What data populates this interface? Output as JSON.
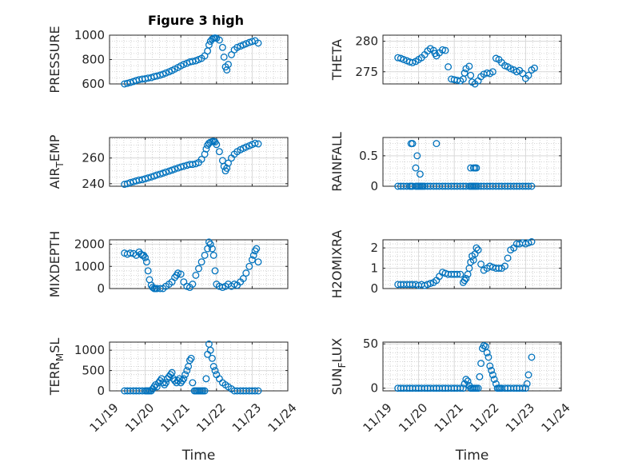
{
  "figure_title": "Figure 3 high",
  "colors": {
    "marker": "#0072BD",
    "axes": "#262626",
    "grid": "#d9d9d9",
    "background": "#ffffff"
  },
  "chart_data": [
    {
      "type": "scatter",
      "ylabel": "PRESSURE",
      "title": "Figure 3 high",
      "xlim": [
        19,
        24
      ],
      "ylim": [
        600,
        1000
      ],
      "yticks": [
        600,
        800,
        1000
      ],
      "ytick_labels": [
        "600",
        "800",
        "1000"
      ],
      "xtick_labels": [],
      "xlabel": "",
      "grid": "on",
      "x": [
        19.42,
        19.5,
        19.58,
        19.67,
        19.75,
        19.83,
        19.92,
        20.0,
        20.08,
        20.17,
        20.25,
        20.33,
        20.42,
        20.5,
        20.58,
        20.67,
        20.75,
        20.83,
        20.92,
        21.0,
        21.08,
        21.17,
        21.25,
        21.33,
        21.42,
        21.5,
        21.58,
        21.67,
        21.75,
        21.79,
        21.83,
        21.88,
        21.92,
        21.96,
        22.0,
        22.08,
        22.17,
        22.21,
        22.25,
        22.29,
        22.33,
        22.42,
        22.5,
        22.58,
        22.67,
        22.75,
        22.83,
        22.92,
        23.0,
        23.08,
        23.17
      ],
      "y": [
        600,
        605,
        612,
        620,
        628,
        635,
        640,
        642,
        648,
        652,
        660,
        665,
        672,
        680,
        690,
        700,
        710,
        722,
        735,
        748,
        760,
        770,
        780,
        785,
        790,
        800,
        810,
        830,
        870,
        920,
        950,
        968,
        975,
        978,
        975,
        960,
        900,
        820,
        740,
        715,
        760,
        840,
        880,
        900,
        910,
        920,
        930,
        940,
        948,
        955,
        935
      ]
    },
    {
      "type": "scatter",
      "ylabel": "THETA",
      "xlim": [
        19,
        24
      ],
      "ylim": [
        273,
        281
      ],
      "yticks": [
        275,
        280
      ],
      "ytick_labels": [
        "275",
        "280"
      ],
      "xtick_labels": [],
      "xlabel": "",
      "grid": "on",
      "x": [
        19.42,
        19.5,
        19.58,
        19.67,
        19.75,
        19.83,
        19.92,
        20.0,
        20.08,
        20.17,
        20.25,
        20.33,
        20.42,
        20.46,
        20.5,
        20.58,
        20.67,
        20.75,
        20.83,
        20.92,
        21.0,
        21.08,
        21.17,
        21.25,
        21.29,
        21.33,
        21.42,
        21.46,
        21.5,
        21.58,
        21.67,
        21.75,
        21.83,
        21.92,
        22.0,
        22.08,
        22.17,
        22.25,
        22.33,
        22.42,
        22.5,
        22.58,
        22.67,
        22.75,
        22.83,
        22.92,
        23.0,
        23.08,
        23.17,
        23.25
      ],
      "y": [
        277.3,
        277.2,
        277.0,
        276.8,
        276.6,
        276.5,
        276.7,
        277.0,
        277.3,
        277.8,
        278.4,
        278.8,
        278.5,
        278.0,
        277.6,
        278.1,
        278.6,
        278.5,
        275.8,
        273.8,
        273.7,
        273.6,
        273.5,
        273.8,
        274.8,
        275.5,
        275.9,
        274.4,
        273.3,
        273.0,
        273.5,
        274.2,
        274.6,
        274.8,
        274.7,
        275.0,
        277.2,
        277.0,
        276.5,
        276.0,
        275.8,
        275.5,
        275.3,
        275.0,
        275.2,
        274.7,
        273.9,
        274.4,
        275.3,
        275.6
      ]
    },
    {
      "type": "scatter",
      "ylabel": "AIR_TEMP",
      "xlim": [
        19,
        24
      ],
      "ylim": [
        238,
        276
      ],
      "yticks": [
        240,
        260
      ],
      "ytick_labels": [
        "240",
        "260"
      ],
      "xtick_labels": [],
      "xlabel": "",
      "grid": "on",
      "x": [
        19.42,
        19.5,
        19.58,
        19.67,
        19.75,
        19.83,
        19.92,
        20.0,
        20.08,
        20.17,
        20.25,
        20.33,
        20.42,
        20.5,
        20.58,
        20.67,
        20.75,
        20.83,
        20.92,
        21.0,
        21.08,
        21.17,
        21.25,
        21.33,
        21.42,
        21.5,
        21.58,
        21.67,
        21.71,
        21.75,
        21.79,
        21.83,
        21.88,
        21.92,
        21.96,
        22.0,
        22.08,
        22.17,
        22.21,
        22.25,
        22.29,
        22.33,
        22.42,
        22.5,
        22.58,
        22.67,
        22.75,
        22.83,
        22.92,
        23.0,
        23.08,
        23.17
      ],
      "y": [
        239.5,
        240.0,
        240.8,
        241.5,
        242.2,
        242.8,
        243.2,
        243.8,
        244.5,
        245.2,
        246.0,
        246.8,
        247.5,
        248.2,
        249.0,
        249.8,
        250.6,
        251.4,
        252.2,
        253.0,
        253.6,
        254.3,
        255.0,
        255.0,
        255.5,
        256.5,
        259.0,
        263.0,
        267.0,
        270.0,
        271.5,
        272.3,
        272.8,
        273.0,
        272.5,
        270.5,
        265.0,
        258.0,
        253.5,
        250.0,
        252.0,
        256.0,
        260.0,
        263.0,
        265.0,
        266.5,
        267.5,
        268.5,
        269.5,
        270.5,
        271.5,
        271.0
      ]
    },
    {
      "type": "scatter",
      "ylabel": "RAINFALL",
      "xlim": [
        19,
        24
      ],
      "ylim": [
        0,
        0.8
      ],
      "yticks": [
        0,
        0.5
      ],
      "ytick_labels": [
        "0",
        "0.5"
      ],
      "xtick_labels": [],
      "xlabel": "",
      "grid": "on",
      "x": [
        19.42,
        19.5,
        19.58,
        19.67,
        19.75,
        19.79,
        19.83,
        19.92,
        19.96,
        20.0,
        20.04,
        20.08,
        20.12,
        20.17,
        20.25,
        20.33,
        20.42,
        20.5,
        20.58,
        20.67,
        20.75,
        20.83,
        20.92,
        21.0,
        21.08,
        21.17,
        21.25,
        21.33,
        21.42,
        21.46,
        21.5,
        21.54,
        21.58,
        21.62,
        21.67,
        21.75,
        21.83,
        21.92,
        22.0,
        22.08,
        22.17,
        22.25,
        22.33,
        22.42,
        22.5,
        22.58,
        22.67,
        22.75,
        22.83,
        22.92,
        23.0,
        23.08,
        23.17,
        19.79,
        19.83,
        19.92,
        19.96,
        20.04,
        20.5,
        21.46,
        21.54,
        21.58,
        21.62
      ],
      "y": [
        0,
        0,
        0,
        0,
        0,
        0,
        0,
        0,
        0,
        0,
        0,
        0,
        0,
        0,
        0,
        0,
        0,
        0,
        0,
        0,
        0,
        0,
        0,
        0,
        0,
        0,
        0,
        0,
        0,
        0,
        0,
        0,
        0,
        0,
        0,
        0,
        0,
        0,
        0,
        0,
        0,
        0,
        0,
        0,
        0,
        0,
        0,
        0,
        0,
        0,
        0,
        0,
        0,
        0.7,
        0.7,
        0.3,
        0.5,
        0.2,
        0.7,
        0.3,
        0.3,
        0.3,
        0.3
      ]
    },
    {
      "type": "scatter",
      "ylabel": "MIXDEPTH",
      "xlim": [
        19,
        24
      ],
      "ylim": [
        0,
        2200
      ],
      "yticks": [
        0,
        1000,
        2000
      ],
      "ytick_labels": [
        "0",
        "1000",
        "2000"
      ],
      "xtick_labels": [],
      "xlabel": "",
      "grid": "on",
      "x": [
        19.42,
        19.5,
        19.58,
        19.67,
        19.75,
        19.83,
        19.88,
        19.92,
        19.96,
        20.0,
        20.04,
        20.08,
        20.12,
        20.17,
        20.21,
        20.25,
        20.29,
        20.33,
        20.42,
        20.5,
        20.58,
        20.67,
        20.75,
        20.83,
        20.88,
        20.92,
        21.0,
        21.08,
        21.17,
        21.25,
        21.33,
        21.42,
        21.5,
        21.58,
        21.67,
        21.75,
        21.79,
        21.83,
        21.88,
        21.92,
        21.96,
        22.0,
        22.08,
        22.17,
        22.25,
        22.33,
        22.42,
        22.5,
        22.58,
        22.67,
        22.75,
        22.83,
        22.92,
        23.0,
        23.04,
        23.08,
        23.12,
        23.17
      ],
      "y": [
        1600,
        1550,
        1600,
        1580,
        1500,
        1650,
        1550,
        1500,
        1500,
        1400,
        1200,
        800,
        400,
        150,
        50,
        0,
        0,
        0,
        0,
        0,
        100,
        200,
        300,
        500,
        600,
        700,
        650,
        300,
        100,
        50,
        200,
        600,
        900,
        1200,
        1500,
        1800,
        2100,
        2000,
        1800,
        1500,
        800,
        200,
        100,
        50,
        100,
        200,
        100,
        200,
        150,
        300,
        450,
        700,
        1000,
        1300,
        1500,
        1700,
        1800,
        1200
      ]
    },
    {
      "type": "scatter",
      "ylabel": "H2OMIXRA",
      "xlim": [
        19,
        24
      ],
      "ylim": [
        0,
        2.4
      ],
      "yticks": [
        0,
        1,
        2
      ],
      "ytick_labels": [
        "0",
        "1",
        "2"
      ],
      "xtick_labels": [],
      "xlabel": "",
      "grid": "on",
      "x": [
        19.42,
        19.5,
        19.58,
        19.67,
        19.75,
        19.83,
        19.92,
        20.0,
        20.08,
        20.17,
        20.25,
        20.33,
        20.42,
        20.5,
        20.58,
        20.67,
        20.75,
        20.83,
        20.92,
        21.0,
        21.08,
        21.17,
        21.25,
        21.29,
        21.33,
        21.38,
        21.42,
        21.46,
        21.5,
        21.54,
        21.58,
        21.62,
        21.67,
        21.75,
        21.83,
        21.92,
        22.0,
        22.08,
        22.17,
        22.25,
        22.33,
        22.42,
        22.5,
        22.58,
        22.67,
        22.75,
        22.83,
        22.92,
        23.0,
        23.08,
        23.17
      ],
      "y": [
        0.2,
        0.2,
        0.2,
        0.2,
        0.2,
        0.2,
        0.2,
        0.15,
        0.2,
        0.15,
        0.2,
        0.25,
        0.3,
        0.4,
        0.6,
        0.8,
        0.75,
        0.7,
        0.7,
        0.7,
        0.7,
        0.7,
        0.3,
        0.4,
        0.5,
        0.7,
        1.0,
        1.3,
        1.6,
        1.4,
        1.7,
        2.0,
        1.9,
        1.2,
        0.9,
        1.0,
        1.1,
        1.05,
        1.0,
        1.0,
        1.0,
        1.1,
        1.5,
        1.9,
        2.0,
        2.2,
        2.2,
        2.25,
        2.2,
        2.25,
        2.3
      ]
    },
    {
      "type": "scatter",
      "ylabel": "TERR_MSL",
      "xlim": [
        19,
        24
      ],
      "ylim": [
        0,
        1200
      ],
      "yticks": [
        0,
        500,
        1000
      ],
      "ytick_labels": [
        "0",
        "500",
        "1000"
      ],
      "xtick_labels": [
        "11/19",
        "11/20",
        "11/21",
        "11/22",
        "11/23",
        "11/24"
      ],
      "xlabel": "Time",
      "grid": "on",
      "x": [
        19.42,
        19.5,
        19.58,
        19.67,
        19.75,
        19.83,
        19.92,
        20.0,
        20.04,
        20.08,
        20.12,
        20.17,
        20.21,
        20.25,
        20.29,
        20.33,
        20.38,
        20.42,
        20.46,
        20.5,
        20.54,
        20.58,
        20.62,
        20.67,
        20.71,
        20.75,
        20.79,
        20.83,
        20.88,
        20.92,
        20.96,
        21.0,
        21.04,
        21.08,
        21.12,
        21.17,
        21.21,
        21.25,
        21.29,
        21.33,
        21.38,
        21.42,
        21.46,
        21.5,
        21.54,
        21.58,
        21.62,
        21.67,
        21.71,
        21.75,
        21.79,
        21.83,
        21.88,
        21.92,
        21.96,
        22.0,
        22.08,
        22.17,
        22.25,
        22.33,
        22.42,
        22.5,
        22.58,
        22.67,
        22.75,
        22.83,
        22.92,
        23.0,
        23.08,
        23.17
      ],
      "y": [
        0,
        0,
        0,
        0,
        0,
        0,
        0,
        0,
        0,
        0,
        0,
        0,
        50,
        100,
        150,
        100,
        200,
        250,
        300,
        200,
        150,
        200,
        300,
        350,
        400,
        450,
        300,
        250,
        200,
        250,
        300,
        200,
        250,
        300,
        400,
        500,
        600,
        750,
        800,
        200,
        0,
        0,
        0,
        0,
        0,
        0,
        0,
        0,
        300,
        900,
        1150,
        1000,
        800,
        600,
        500,
        400,
        300,
        200,
        150,
        100,
        50,
        0,
        0,
        0,
        0,
        0,
        0,
        0,
        0,
        0
      ]
    },
    {
      "type": "scatter",
      "ylabel": "SUN_FLUX",
      "xlim": [
        19,
        24
      ],
      "ylim": [
        -3,
        52
      ],
      "yticks": [
        0,
        50
      ],
      "ytick_labels": [
        "0",
        "50"
      ],
      "xtick_labels": [
        "11/19",
        "11/20",
        "11/21",
        "11/22",
        "11/23",
        "11/24"
      ],
      "xlabel": "Time",
      "grid": "on",
      "x": [
        19.42,
        19.5,
        19.58,
        19.67,
        19.75,
        19.83,
        19.92,
        20.0,
        20.08,
        20.17,
        20.25,
        20.33,
        20.42,
        20.5,
        20.58,
        20.67,
        20.75,
        20.83,
        20.92,
        21.0,
        21.08,
        21.17,
        21.25,
        21.29,
        21.33,
        21.38,
        21.42,
        21.46,
        21.5,
        21.54,
        21.58,
        21.62,
        21.67,
        21.71,
        21.75,
        21.79,
        21.83,
        21.88,
        21.92,
        21.96,
        22.0,
        22.04,
        22.08,
        22.12,
        22.17,
        22.21,
        22.25,
        22.29,
        22.33,
        22.42,
        22.5,
        22.58,
        22.67,
        22.75,
        22.83,
        22.92,
        23.0,
        23.04,
        23.08,
        23.17
      ],
      "y": [
        0,
        0,
        0,
        0,
        0,
        0,
        0,
        0,
        0,
        0,
        0,
        0,
        0,
        0,
        0,
        0,
        0,
        0,
        0,
        0,
        0,
        0,
        0,
        5,
        10,
        8,
        3,
        0,
        0,
        0,
        0,
        0,
        0,
        13,
        28,
        45,
        48,
        47,
        40,
        35,
        25,
        20,
        15,
        10,
        5,
        0,
        0,
        0,
        0,
        0,
        0,
        0,
        0,
        0,
        0,
        0,
        0,
        5,
        15,
        35
      ]
    }
  ]
}
